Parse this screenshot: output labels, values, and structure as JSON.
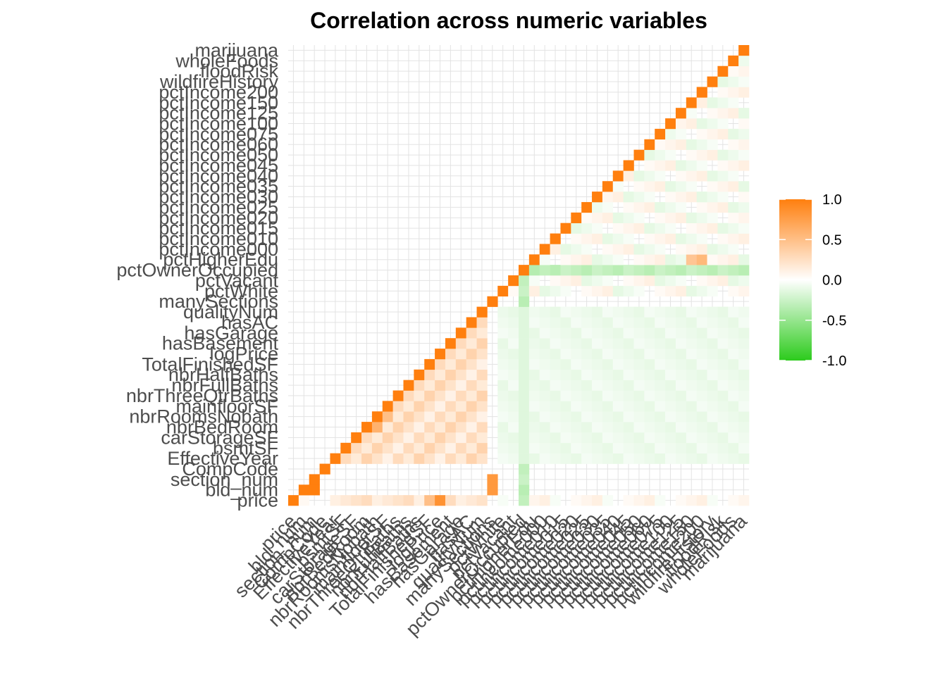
{
  "chart_data": {
    "type": "heatmap",
    "title": "Correlation across numeric variables",
    "xlabel": "",
    "ylabel": "",
    "variables": [
      "price",
      "bld_num",
      "section_num",
      "CompCode",
      "EffectiveYear",
      "bsmtSF",
      "carStorageSF",
      "nbrBedRoom",
      "nbrRoomsNobath",
      "mainfloorSF",
      "nbrThreeQtrBaths",
      "nbrFullBaths",
      "nbrHalfBaths",
      "TotalFinishedSF",
      "logPrice",
      "hasBasement",
      "hasGarage",
      "hasAC",
      "qualityNum",
      "manySections",
      "pctWhite",
      "pctVacant",
      "pctOwnerOccupied",
      "pctHigherEdu",
      "pctIncome000",
      "pctIncome010",
      "pctIncome015",
      "pctIncome020",
      "pctIncome025",
      "pctIncome030",
      "pctIncome035",
      "pctIncome040",
      "pctIncome045",
      "pctIncome050",
      "pctIncome060",
      "pctIncome075",
      "pctIncome100",
      "pctIncome125",
      "pctIncome150",
      "pctIncome200",
      "wildfireHistory",
      "floodRisk",
      "wholeFoods",
      "marijuana"
    ],
    "triangle": "lower-right (row index <= column index)",
    "diagonal": 1.0,
    "off_diagonal_note": "Approximate correlations read from cell colours; most pairs near 0.",
    "highlighted_pairs": [
      {
        "x": "bld_num",
        "y": "section_num",
        "value": 1.0
      },
      {
        "x": "price",
        "y": "bld_num",
        "value": 0.05
      },
      {
        "x": "manySections",
        "y": "section_num",
        "value": 0.8
      },
      {
        "x": "manySections",
        "y": "bld_num",
        "value": 0.8
      },
      {
        "x": "logPrice",
        "y": "price",
        "value": 0.85
      },
      {
        "x": "TotalFinishedSF",
        "y": "price",
        "value": 0.5
      },
      {
        "x": "mainfloorSF",
        "y": "nbrRoomsNobath",
        "value": 0.5
      },
      {
        "x": "nbrBedRoom",
        "y": "nbrRoomsNobath",
        "value": 0.6
      },
      {
        "x": "pctHigherEdu",
        "y": "pctOwnerOccupied",
        "value": -0.35
      },
      {
        "x": "pctIncome200",
        "y": "pctHigherEdu",
        "value": 0.55
      },
      {
        "x": "pctIncome150",
        "y": "pctHigherEdu",
        "value": 0.45
      }
    ],
    "legend": {
      "position": "right",
      "ticks": [
        "1.0",
        "0.5",
        "0.0",
        "-0.5",
        "-1.0"
      ],
      "high_color": "#FF7F0E",
      "mid_color": "#FFFFFF",
      "low_color": "#2CCB1C"
    },
    "grid": true
  }
}
